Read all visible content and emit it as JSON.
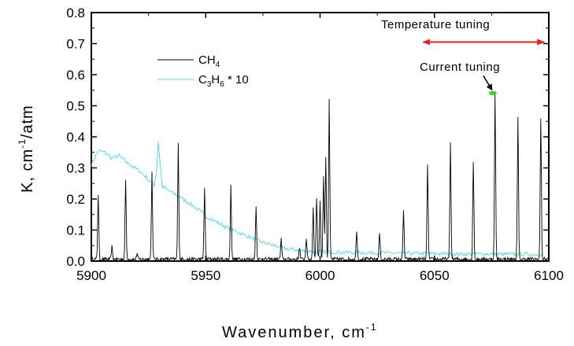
{
  "chart_data": {
    "type": "line",
    "xlabel": "Wavenumber, cm",
    "xlabel_sup": "-1",
    "ylabel_main": "K, cm",
    "ylabel_sup": "-1",
    "ylabel_tail": "/atm",
    "xlim": [
      5900,
      6100
    ],
    "ylim": [
      0.0,
      0.8
    ],
    "x_ticks": [
      5900,
      5950,
      6000,
      6050,
      6100
    ],
    "x_tick_labels": [
      "5900",
      "5950",
      "6000",
      "6050",
      "6100"
    ],
    "y_ticks": [
      0.0,
      0.1,
      0.2,
      0.3,
      0.4,
      0.5,
      0.6,
      0.7,
      0.8
    ],
    "y_tick_labels": [
      "0.0",
      "0.1",
      "0.2",
      "0.3",
      "0.4",
      "0.5",
      "0.6",
      "0.7",
      "0.8"
    ],
    "grid": false,
    "legend_position": "top-left",
    "series": [
      {
        "name": "CH4",
        "legend_parts": {
          "base": "CH",
          "sub": "4",
          "tail": ""
        },
        "color": "#000000",
        "peaks": [
          {
            "x": 5903,
            "y": 0.21
          },
          {
            "x": 5909,
            "y": 0.04
          },
          {
            "x": 5915,
            "y": 0.25
          },
          {
            "x": 5920,
            "y": 0.02
          },
          {
            "x": 5926.5,
            "y": 0.28
          },
          {
            "x": 5938,
            "y": 0.37
          },
          {
            "x": 5949.5,
            "y": 0.23
          },
          {
            "x": 5961,
            "y": 0.235
          },
          {
            "x": 5972,
            "y": 0.17
          },
          {
            "x": 5983,
            "y": 0.065
          },
          {
            "x": 5991,
            "y": 0.04
          },
          {
            "x": 5994,
            "y": 0.07
          },
          {
            "x": 5997,
            "y": 0.17
          },
          {
            "x": 5998.5,
            "y": 0.2
          },
          {
            "x": 6000,
            "y": 0.19
          },
          {
            "x": 6001.5,
            "y": 0.265
          },
          {
            "x": 6002.5,
            "y": 0.33
          },
          {
            "x": 6004,
            "y": 0.51
          },
          {
            "x": 6016,
            "y": 0.095
          },
          {
            "x": 6026,
            "y": 0.085
          },
          {
            "x": 6036.5,
            "y": 0.155
          },
          {
            "x": 6047,
            "y": 0.3
          },
          {
            "x": 6057,
            "y": 0.375
          },
          {
            "x": 6067,
            "y": 0.315
          },
          {
            "x": 6076.5,
            "y": 0.53
          },
          {
            "x": 6086.5,
            "y": 0.455
          },
          {
            "x": 6096.5,
            "y": 0.455
          }
        ]
      },
      {
        "name": "C3H6 * 10",
        "legend_parts": {
          "base": "C",
          "sub": "3",
          "mid": "H",
          "sub2": "6",
          "tail": " * 10"
        },
        "color": "#4fdcdc",
        "points": [
          [
            5900,
            0.31
          ],
          [
            5903,
            0.355
          ],
          [
            5906,
            0.35
          ],
          [
            5909,
            0.33
          ],
          [
            5912,
            0.34
          ],
          [
            5915,
            0.32
          ],
          [
            5918,
            0.305
          ],
          [
            5921,
            0.29
          ],
          [
            5924,
            0.27
          ],
          [
            5926,
            0.255
          ],
          [
            5927.5,
            0.245
          ],
          [
            5928.5,
            0.29
          ],
          [
            5929.3,
            0.385
          ],
          [
            5930,
            0.32
          ],
          [
            5931,
            0.24
          ],
          [
            5934,
            0.225
          ],
          [
            5938,
            0.21
          ],
          [
            5942,
            0.19
          ],
          [
            5946,
            0.17
          ],
          [
            5950,
            0.145
          ],
          [
            5955,
            0.125
          ],
          [
            5960,
            0.105
          ],
          [
            5965,
            0.09
          ],
          [
            5970,
            0.075
          ],
          [
            5975,
            0.06
          ],
          [
            5980,
            0.05
          ],
          [
            5985,
            0.04
          ],
          [
            5990,
            0.035
          ],
          [
            5995,
            0.032
          ],
          [
            6000,
            0.03
          ],
          [
            6010,
            0.028
          ],
          [
            6020,
            0.027
          ],
          [
            6030,
            0.026
          ],
          [
            6040,
            0.025
          ],
          [
            6050,
            0.024
          ],
          [
            6060,
            0.023
          ],
          [
            6070,
            0.023
          ],
          [
            6080,
            0.022
          ],
          [
            6090,
            0.022
          ],
          [
            6098,
            0.021
          ]
        ]
      }
    ],
    "annotations": [
      {
        "text": "Temperature tuning",
        "type": "double-arrow",
        "x_range": [
          6045,
          6098
        ],
        "y": 0.705,
        "color": "#e62020"
      },
      {
        "text": "Current tuning",
        "type": "marker-arrow",
        "marker": {
          "x": 6075.5,
          "y": 0.541
        },
        "color": "#22dd22"
      }
    ]
  }
}
